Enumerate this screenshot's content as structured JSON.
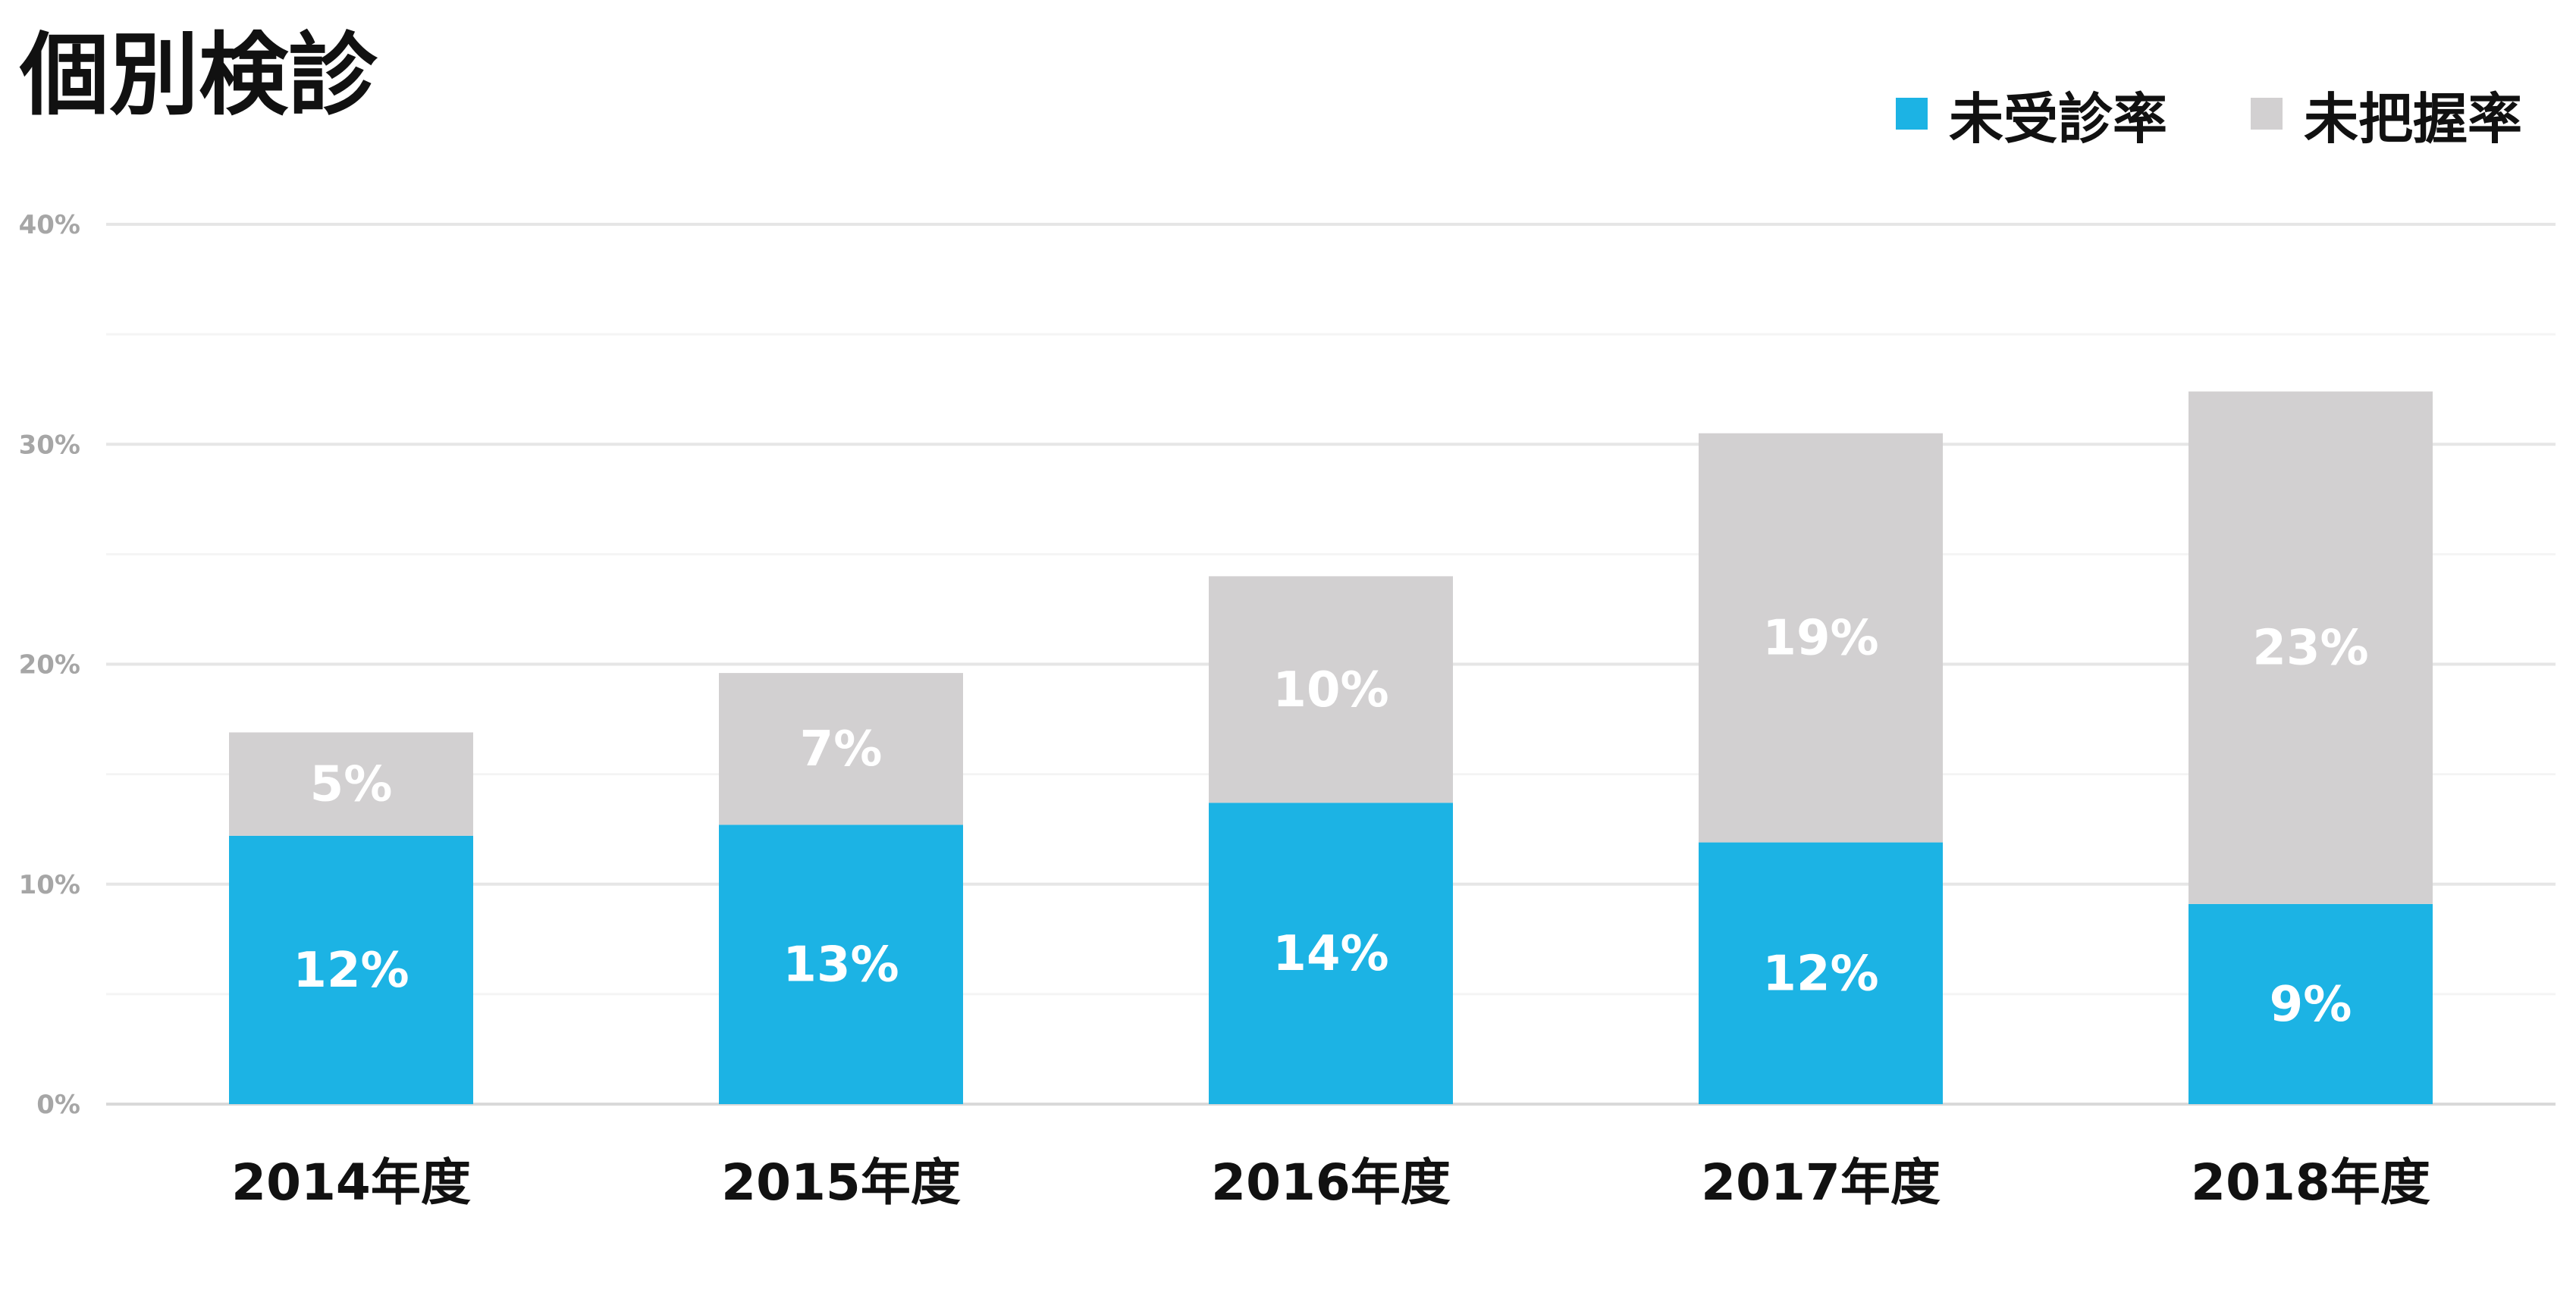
{
  "chart_data": {
    "type": "bar",
    "stacked": true,
    "title": "個別検診",
    "categories": [
      "2014年度",
      "2015年度",
      "2016年度",
      "2017年度",
      "2018年度"
    ],
    "series": [
      {
        "name": "未受診率",
        "color": "#1CB3E4",
        "values": [
          12,
          13,
          14,
          12,
          9
        ],
        "heights": [
          12.2,
          12.7,
          13.7,
          11.9,
          9.1
        ],
        "labels": [
          "12%",
          "13%",
          "14%",
          "12%",
          "9%"
        ]
      },
      {
        "name": "未把握率",
        "color": "#D2D0D1",
        "values": [
          5,
          7,
          10,
          19,
          23
        ],
        "heights": [
          4.7,
          6.9,
          10.3,
          18.6,
          23.3
        ],
        "labels": [
          "5%",
          "7%",
          "10%",
          "19%",
          "23%"
        ]
      }
    ],
    "ylim": [
      0,
      40
    ],
    "yticks": [
      0,
      10,
      20,
      30,
      40
    ],
    "ytick_labels": [
      "0%",
      "10%",
      "20%",
      "30%",
      "40%"
    ],
    "grid": true,
    "legend": "top-right",
    "xlabel": "",
    "ylabel": ""
  }
}
